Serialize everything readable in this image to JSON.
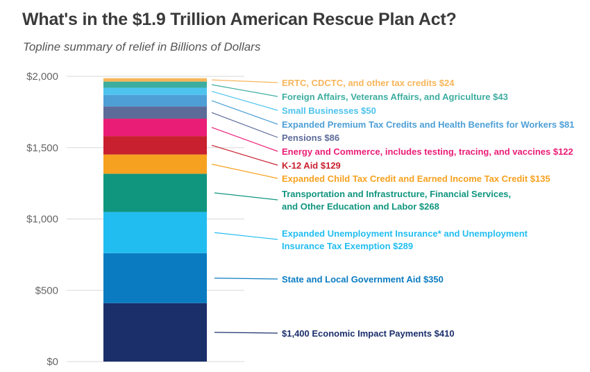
{
  "chart_data": {
    "type": "bar",
    "stacked": true,
    "title": "What's in the $1.9 Trillion American Rescue Plan Act?",
    "subtitle": "Topline summary of relief in Billions of Dollars",
    "ylim": [
      0,
      2000
    ],
    "yticks": [
      "$0",
      "$500",
      "$1,000",
      "$1,500",
      "$2,000"
    ],
    "ytick_values": [
      0,
      500,
      1000,
      1500,
      2000
    ],
    "grid": true,
    "segments": [
      {
        "lines": [
          "$1,400 Economic Impact Payments $410"
        ],
        "value": 410,
        "color": "#1b2f6b"
      },
      {
        "lines": [
          "State and Local Government Aid $350"
        ],
        "value": 350,
        "color": "#0a7bc1"
      },
      {
        "lines": [
          "Expanded Unemployment Insurance* and Unemployment",
          "Insurance Tax Exemption $289"
        ],
        "value": 289,
        "color": "#22bdf0"
      },
      {
        "lines": [
          "Transportation and Infrastructure, Financial Services,",
          "and Other Education and Labor $268"
        ],
        "value": 268,
        "color": "#10957f"
      },
      {
        "lines": [
          "Expanded Child Tax Credit and Earned Income Tax Credit $135"
        ],
        "value": 135,
        "color": "#f6a11f"
      },
      {
        "lines": [
          "K-12 Aid $129"
        ],
        "value": 129,
        "color": "#c8202f"
      },
      {
        "lines": [
          "Energy and Commerce, includes testing, tracing, and vaccines $122"
        ],
        "value": 122,
        "color": "#ea1d76"
      },
      {
        "lines": [
          "Pensions $86"
        ],
        "value": 86,
        "color": "#5d6b99"
      },
      {
        "lines": [
          "Expanded Premium Tax Credits and Health Benefits for Workers $81"
        ],
        "value": 81,
        "color": "#4d9fd6"
      },
      {
        "lines": [
          "Small Businesses $50"
        ],
        "value": 50,
        "color": "#4dc3ee"
      },
      {
        "lines": [
          "Foreign Affairs, Veterans Affairs, and Agriculture $43"
        ],
        "value": 43,
        "color": "#3dada0"
      },
      {
        "lines": [
          "ERTC, CDCTC, and other tax credits $24"
        ],
        "value": 24,
        "color": "#f6b55a"
      }
    ]
  }
}
